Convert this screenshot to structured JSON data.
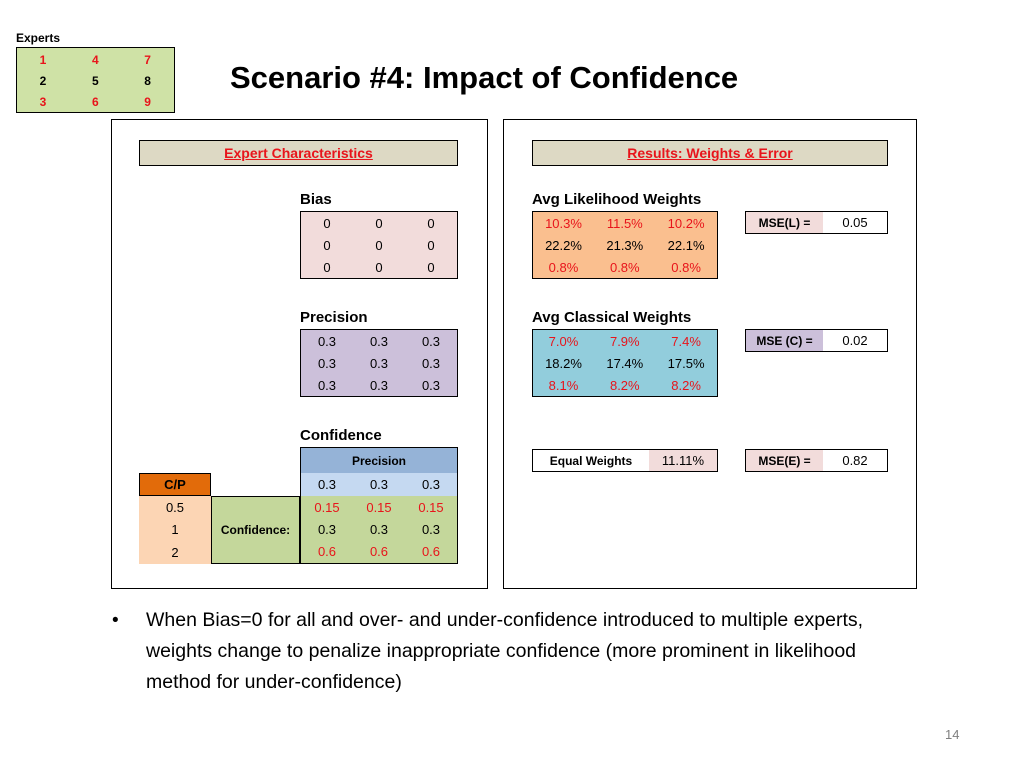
{
  "experts": {
    "label": "Experts",
    "grid": [
      [
        {
          "text": "1",
          "red": true
        },
        {
          "text": "4",
          "red": true
        },
        {
          "text": "7",
          "red": true
        }
      ],
      [
        {
          "text": "2",
          "red": false
        },
        {
          "text": "5",
          "red": false
        },
        {
          "text": "8",
          "red": false
        }
      ],
      [
        {
          "text": "3",
          "red": true
        },
        {
          "text": "6",
          "red": true
        },
        {
          "text": "9",
          "red": true
        }
      ]
    ]
  },
  "title": "Scenario #4: Impact of Confidence",
  "left_panel": {
    "header": "Expert Characteristics",
    "bias": {
      "label": "Bias",
      "rows": [
        [
          "0",
          "0",
          "0"
        ],
        [
          "0",
          "0",
          "0"
        ],
        [
          "0",
          "0",
          "0"
        ]
      ]
    },
    "precision": {
      "label": "Precision",
      "rows": [
        [
          "0.3",
          "0.3",
          "0.3"
        ],
        [
          "0.3",
          "0.3",
          "0.3"
        ],
        [
          "0.3",
          "0.3",
          "0.3"
        ]
      ]
    },
    "confidence": {
      "label": "Confidence",
      "precision_header": "Precision",
      "cp_header": "C/P",
      "confidence_label": "Confidence:",
      "precision_values": [
        "0.3",
        "0.3",
        "0.3"
      ],
      "rows": [
        {
          "c": "0.5",
          "values": [
            "0.15",
            "0.15",
            "0.15"
          ],
          "red": true
        },
        {
          "c": "1",
          "values": [
            "0.3",
            "0.3",
            "0.3"
          ],
          "red": false
        },
        {
          "c": "2",
          "values": [
            "0.6",
            "0.6",
            "0.6"
          ],
          "red": true
        }
      ]
    }
  },
  "right_panel": {
    "header": "Results: Weights & Error",
    "likelihood": {
      "label": "Avg Likelihood Weights",
      "rows": [
        {
          "values": [
            "10.3%",
            "11.5%",
            "10.2%"
          ],
          "red": true
        },
        {
          "values": [
            "22.2%",
            "21.3%",
            "22.1%"
          ],
          "red": false
        },
        {
          "values": [
            "0.8%",
            "0.8%",
            "0.8%"
          ],
          "red": true
        }
      ],
      "mse_label": "MSE(L) =",
      "mse_value": "0.05"
    },
    "classical": {
      "label": "Avg Classical Weights",
      "rows": [
        {
          "values": [
            "7.0%",
            "7.9%",
            "7.4%"
          ],
          "red": true
        },
        {
          "values": [
            "18.2%",
            "17.4%",
            "17.5%"
          ],
          "red": false
        },
        {
          "values": [
            "8.1%",
            "8.2%",
            "8.2%"
          ],
          "red": true
        }
      ],
      "mse_label": "MSE (C) =",
      "mse_value": "0.02"
    },
    "equal": {
      "label": "Equal Weights",
      "value": "11.11%",
      "mse_label": "MSE(E) =",
      "mse_value": "0.82"
    }
  },
  "colors": {
    "experts_green": "#cfe2a6",
    "header_tan": "#ddd9c4",
    "bias_pink": "#f2dcdb",
    "precision_lavender": "#ccc0da",
    "precision_blue": "#c5d9f1",
    "precision_header_blue": "#95b3d7",
    "cp_orange": "#e26b0a",
    "cp_peach": "#fcd5b4",
    "confidence_green": "#c4d79b",
    "likelihood_orange": "#fabf8f",
    "classical_blue": "#92cddc",
    "mse_pink": "#f2dcdb",
    "mse_lavender": "#ccc0da",
    "mse_blue": "#b7dee8",
    "red_text": "#e8141b"
  },
  "bullet": "When Bias=0 for all and over- and under-confidence introduced to multiple experts, weights change to penalize inappropriate confidence (more prominent in likelihood method for under-confidence)",
  "page_number": "14"
}
